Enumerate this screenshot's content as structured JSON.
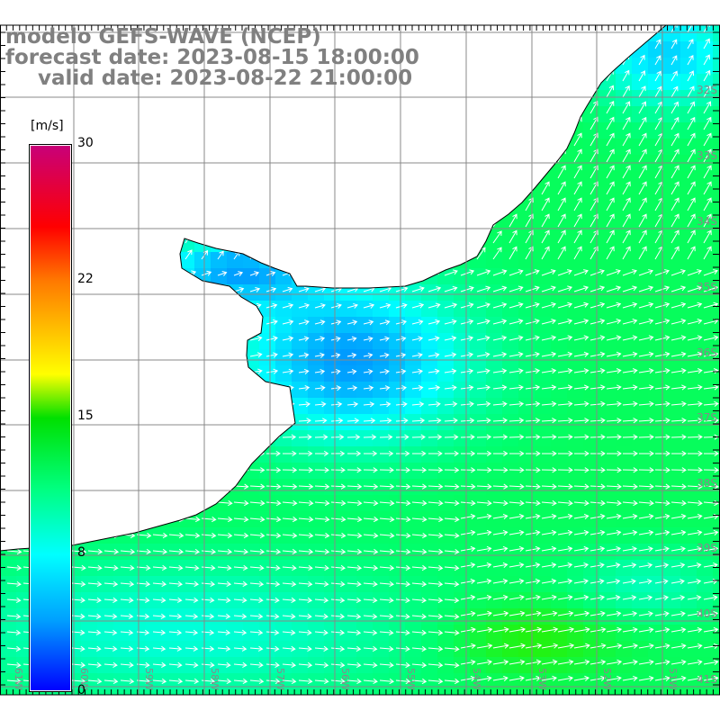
{
  "title": {
    "model": "modelo GEFS-WAVE (NCEP)",
    "forecast": "forecast date: 2023-08-15 18:00:00",
    "valid": "valid date: 2023-08-22 21:00:00"
  },
  "colorbar": {
    "unit": "[m/s]",
    "labels": [
      "30",
      "22",
      "15",
      "8",
      "0"
    ],
    "stops": [
      30,
      22,
      15,
      8,
      0
    ]
  },
  "axes": {
    "longitudes": [
      "61W",
      "60W",
      "59W",
      "58W",
      "57W",
      "56W",
      "55W",
      "54W",
      "53W",
      "52W",
      "51W"
    ],
    "latitudes": [
      "32S",
      "33S",
      "34S",
      "35S",
      "36S",
      "37S",
      "38S",
      "39S",
      "40S",
      "41S"
    ]
  },
  "colors": {
    "grid": "#888888",
    "land": "#ffffff",
    "coast": "#000000",
    "arrow": "#ffffff"
  }
}
